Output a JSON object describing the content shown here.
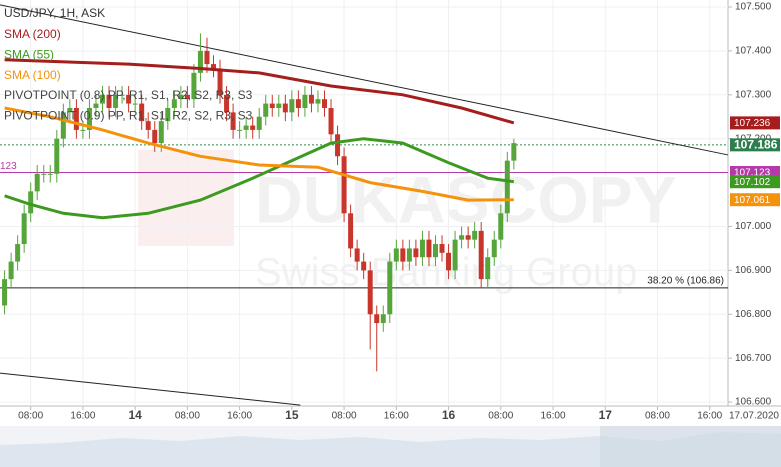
{
  "chart_data": {
    "type": "candlestick",
    "title": "USD/JPY, 1H, ASK",
    "watermark": [
      "DUKASCOPY",
      "Swiss Banking Group"
    ],
    "up_color": "#55a53a",
    "down_color": "#c8352b",
    "xlim": [
      3.3,
      114.8
    ],
    "ylim": [
      106.591,
      107.516
    ],
    "grid": true,
    "date_label": "17.07.2020",
    "xticks": [
      {
        "value": 8,
        "label": "08:00"
      },
      {
        "value": 16,
        "label": "16:00"
      },
      {
        "value": 24,
        "label": "14"
      },
      {
        "value": 32,
        "label": "08:00"
      },
      {
        "value": 40,
        "label": "16:00"
      },
      {
        "value": 48,
        "label": "15"
      },
      {
        "value": 56,
        "label": "08:00"
      },
      {
        "value": 64,
        "label": "16:00"
      },
      {
        "value": 72,
        "label": "16"
      },
      {
        "value": 80,
        "label": "08:00"
      },
      {
        "value": 88,
        "label": "16:00"
      },
      {
        "value": 96,
        "label": "17"
      },
      {
        "value": 104,
        "label": "08:00"
      },
      {
        "value": 112,
        "label": "16:00"
      }
    ],
    "yticks": [
      {
        "value": 107.5,
        "label": "107.500"
      },
      {
        "value": 107.4,
        "label": "107.400"
      },
      {
        "value": 107.3,
        "label": "107.300"
      },
      {
        "value": 107.2,
        "label": "107.200"
      },
      {
        "value": 107.0,
        "label": "107.000"
      },
      {
        "value": 106.9,
        "label": "106.900"
      },
      {
        "value": 106.8,
        "label": "106.800"
      },
      {
        "value": 106.7,
        "label": "106.700"
      },
      {
        "value": 106.6,
        "label": "106.600"
      }
    ],
    "x": [
      4,
      5,
      6,
      7,
      8,
      9,
      10,
      11,
      12,
      13,
      14,
      15,
      16,
      17,
      18,
      19,
      20,
      21,
      22,
      23,
      24,
      25,
      26,
      27,
      28,
      29,
      30,
      31,
      32,
      33,
      34,
      35,
      36,
      37,
      38,
      39,
      40,
      41,
      42,
      43,
      44,
      45,
      46,
      47,
      48,
      49,
      50,
      51,
      52,
      53,
      54,
      55,
      56,
      57,
      58,
      59,
      60,
      61,
      62,
      63,
      64,
      65,
      66,
      67,
      68,
      69,
      70,
      71,
      72,
      73,
      74,
      75,
      76,
      77,
      78,
      79,
      80,
      81,
      82
    ],
    "open": [
      106.82,
      106.88,
      106.92,
      106.96,
      107.03,
      107.08,
      107.12,
      107.12,
      107.12,
      107.2,
      107.26,
      107.27,
      107.22,
      107.22,
      107.27,
      107.28,
      107.3,
      107.27,
      107.3,
      107.3,
      107.28,
      107.28,
      107.24,
      107.22,
      107.19,
      107.24,
      107.27,
      107.29,
      107.3,
      107.29,
      107.35,
      107.4,
      107.37,
      107.36,
      107.3,
      107.26,
      107.22,
      107.22,
      107.23,
      107.22,
      107.25,
      107.28,
      107.27,
      107.28,
      107.26,
      107.29,
      107.27,
      107.3,
      107.28,
      107.29,
      107.27,
      107.21,
      107.16,
      107.03,
      106.95,
      106.92,
      106.9,
      106.8,
      106.78,
      106.8,
      106.92,
      106.95,
      106.92,
      106.95,
      106.93,
      106.97,
      106.93,
      106.96,
      106.94,
      106.9,
      106.97,
      106.98,
      106.97,
      106.99,
      106.88,
      106.93,
      106.97,
      107.03,
      107.15
    ],
    "high": [
      106.9,
      106.94,
      106.98,
      107.05,
      107.1,
      107.14,
      107.14,
      107.14,
      107.22,
      107.28,
      107.29,
      107.29,
      107.24,
      107.29,
      107.3,
      107.32,
      107.32,
      107.32,
      107.32,
      107.32,
      107.3,
      107.3,
      107.26,
      107.24,
      107.26,
      107.29,
      107.31,
      107.32,
      107.32,
      107.37,
      107.44,
      107.43,
      107.39,
      107.38,
      107.32,
      107.28,
      107.24,
      107.25,
      107.25,
      107.27,
      107.3,
      107.3,
      107.3,
      107.3,
      107.31,
      107.31,
      107.32,
      107.32,
      107.31,
      107.31,
      107.29,
      107.23,
      107.18,
      107.05,
      106.97,
      106.94,
      106.92,
      106.82,
      106.82,
      106.94,
      106.97,
      106.97,
      106.97,
      106.97,
      106.99,
      106.99,
      106.98,
      106.98,
      106.96,
      106.99,
      107.0,
      107.0,
      107.01,
      107.01,
      106.95,
      106.99,
      107.05,
      107.17,
      107.2
    ],
    "low": [
      106.8,
      106.86,
      106.9,
      106.94,
      107.01,
      107.06,
      107.1,
      107.1,
      107.1,
      107.18,
      107.24,
      107.2,
      107.2,
      107.2,
      107.25,
      107.26,
      107.25,
      107.25,
      107.28,
      107.26,
      107.26,
      107.22,
      107.2,
      107.17,
      107.17,
      107.22,
      107.25,
      107.27,
      107.27,
      107.27,
      107.33,
      107.35,
      107.34,
      107.28,
      107.24,
      107.2,
      107.2,
      107.2,
      107.2,
      107.2,
      107.23,
      107.25,
      107.25,
      107.24,
      107.24,
      107.25,
      107.25,
      107.26,
      107.26,
      107.25,
      107.19,
      107.14,
      107.01,
      106.93,
      106.9,
      106.88,
      106.72,
      106.67,
      106.76,
      106.78,
      106.9,
      106.9,
      106.9,
      106.91,
      106.91,
      106.91,
      106.91,
      106.92,
      106.88,
      106.88,
      106.95,
      106.95,
      106.95,
      106.86,
      106.86,
      106.91,
      106.95,
      107.01,
      107.13
    ],
    "close": [
      106.88,
      106.92,
      106.96,
      107.03,
      107.08,
      107.12,
      107.12,
      107.12,
      107.2,
      107.26,
      107.27,
      107.22,
      107.22,
      107.27,
      107.28,
      107.3,
      107.27,
      107.3,
      107.3,
      107.28,
      107.28,
      107.24,
      107.22,
      107.19,
      107.24,
      107.27,
      107.29,
      107.3,
      107.29,
      107.35,
      107.4,
      107.37,
      107.36,
      107.3,
      107.26,
      107.22,
      107.22,
      107.23,
      107.22,
      107.25,
      107.28,
      107.27,
      107.28,
      107.26,
      107.29,
      107.27,
      107.3,
      107.28,
      107.29,
      107.27,
      107.21,
      107.16,
      107.03,
      106.95,
      106.92,
      106.9,
      106.8,
      106.78,
      106.8,
      106.92,
      106.95,
      106.92,
      106.95,
      106.93,
      106.97,
      106.93,
      106.96,
      106.94,
      106.9,
      106.97,
      106.98,
      106.97,
      106.99,
      106.88,
      106.93,
      106.97,
      107.03,
      107.15,
      107.19
    ],
    "series": [
      {
        "name": "SMA (200)",
        "color": "#a51d1d",
        "x": [
          4,
          23,
          34,
          43,
          54,
          65,
          74,
          82
        ],
        "values": [
          107.38,
          107.37,
          107.36,
          107.35,
          107.32,
          107.3,
          107.27,
          107.236
        ]
      },
      {
        "name": "SMA (55)",
        "color": "#3c9a1f",
        "x": [
          4,
          8,
          13,
          19,
          26,
          34,
          42,
          48,
          54,
          59,
          65,
          72,
          78,
          82
        ],
        "values": [
          107.07,
          107.05,
          107.03,
          107.02,
          107.03,
          107.06,
          107.11,
          107.15,
          107.19,
          107.2,
          107.19,
          107.145,
          107.11,
          107.102
        ]
      },
      {
        "name": "SMA (100)",
        "color": "#f5920c",
        "x": [
          4,
          11,
          19,
          26,
          34,
          43,
          52,
          60,
          68,
          75,
          82
        ],
        "values": [
          107.27,
          107.25,
          107.22,
          107.19,
          107.16,
          107.14,
          107.135,
          107.1,
          107.08,
          107.06,
          107.061
        ]
      }
    ],
    "pivot_legend": [
      "PIVOTPOINT (0.8) PP, R1, S1, R2, S2, R3, S3",
      "PIVOTPOINT (0.9) PP, R1, S1, R2, S2, R3, S3"
    ],
    "trendlines": [
      {
        "x": [
          3.3,
          114.8
        ],
        "values": [
          107.505,
          107.163
        ]
      },
      {
        "x": [
          3.3,
          49.3
        ],
        "values": [
          106.666,
          106.593
        ]
      }
    ],
    "fib_line": {
      "value": 106.86,
      "label": "38.20 % (106.86)"
    },
    "pivot_line": {
      "value": 107.123,
      "left_label": "123",
      "color": "#b33aa8"
    },
    "price_line": {
      "value": 107.186,
      "color": "#2e8a4a"
    },
    "price_labels": [
      {
        "value": 107.236,
        "color": "#a51d1d"
      },
      {
        "value": 107.186,
        "color": "#2e7d4f"
      },
      {
        "value": 107.123,
        "color": "#b33aa8"
      },
      {
        "value": 107.102,
        "color": "#3c9a1f"
      },
      {
        "value": 107.061,
        "color": "#f5920c"
      }
    ]
  }
}
